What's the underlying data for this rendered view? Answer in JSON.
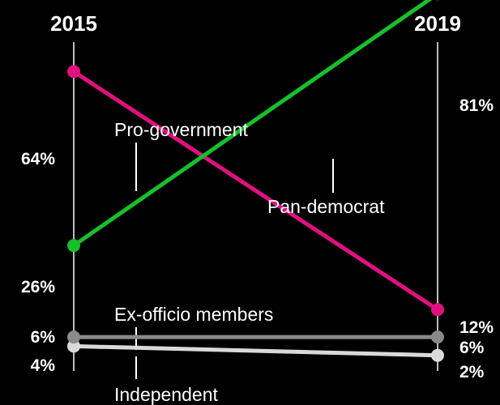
{
  "chart_data": {
    "type": "line",
    "x": [
      "2015",
      "2019"
    ],
    "ylim": [
      0,
      90
    ],
    "grid": false,
    "legend": "none",
    "series": [
      {
        "name": "Pro-government",
        "values": [
          64,
          12
        ],
        "labels": [
          "64%",
          "12%"
        ],
        "color": "#e0117f"
      },
      {
        "name": "Pan-democrat",
        "values": [
          26,
          81
        ],
        "labels": [
          "26%",
          "81%"
        ],
        "color": "#16c02b"
      },
      {
        "name": "Ex-officio members",
        "values": [
          6,
          6
        ],
        "labels": [
          "6%",
          "6%"
        ],
        "color": "#8a8a8a"
      },
      {
        "name": "Independent",
        "values": [
          4,
          2
        ],
        "labels": [
          "4%",
          "2%"
        ],
        "color": "#d9d9d9"
      }
    ]
  }
}
